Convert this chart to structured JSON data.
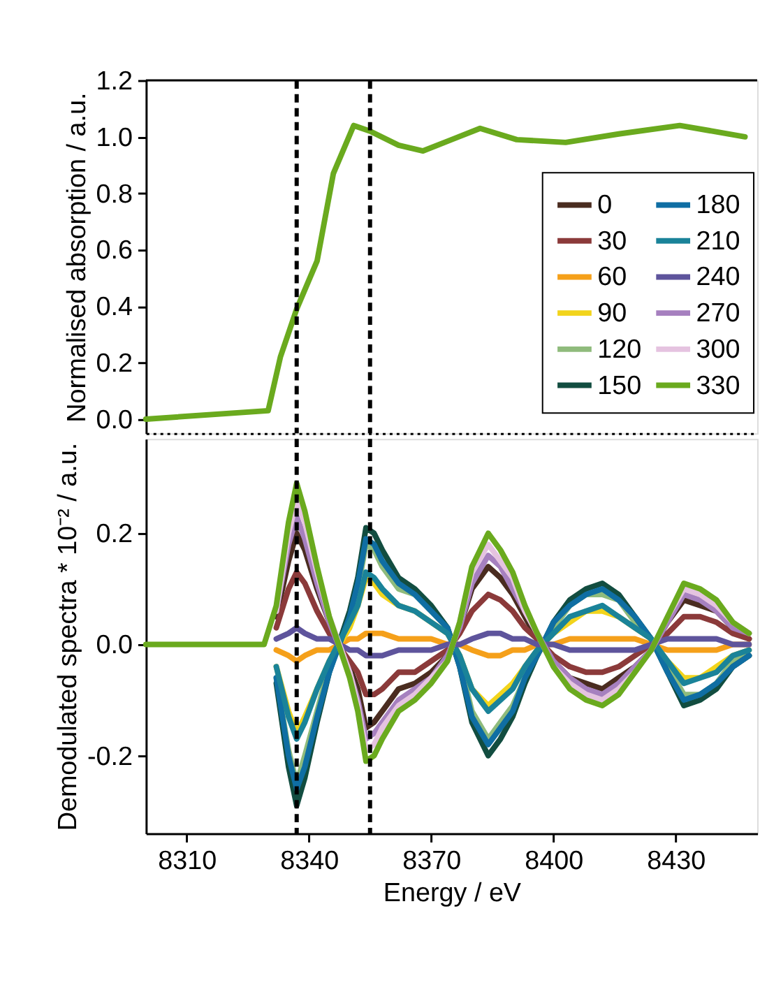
{
  "chart_data": [
    {
      "type": "line",
      "ylabel": "Normalised absorption / a.u.",
      "xlim": [
        8300,
        8450
      ],
      "ylim": [
        -0.05,
        1.2
      ],
      "yticks": [
        {
          "value": 0,
          "label": "0.0"
        },
        {
          "value": 0.2,
          "label": "0.2"
        },
        {
          "value": 0.4,
          "label": "0.4"
        },
        {
          "value": 0.6,
          "label": "0.6"
        },
        {
          "value": 0.8,
          "label": "0.8"
        },
        {
          "value": 1.0,
          "label": "1.0"
        },
        {
          "value": 1.2,
          "label": "1.2"
        }
      ],
      "tick_labels": "y",
      "line_style": "solid",
      "ref_lines": [
        {
          "axis": "x",
          "value": 8337,
          "line_style": "dashed"
        },
        {
          "axis": "x",
          "value": 8355,
          "line_style": "dashed"
        }
      ],
      "x": [
        8300,
        8330,
        8333,
        8337,
        8342,
        8346,
        8351,
        8355,
        8362,
        8368,
        8375,
        8382,
        8391,
        8403,
        8416,
        8431,
        8447
      ],
      "series": [
        {
          "color": "#6aaa1e",
          "values": [
            0,
            0.03,
            0.22,
            0.39,
            0.56,
            0.87,
            1.04,
            1.02,
            0.97,
            0.95,
            0.99,
            1.03,
            0.99,
            0.98,
            1.01,
            1.04,
            1.0
          ]
        }
      ]
    },
    {
      "type": "line",
      "xlabel": "Energy / eV",
      "ylabel": "Demodulated spectra * 10⁻² / a.u.",
      "xlim": [
        8300,
        8450
      ],
      "ylim": [
        -0.34,
        0.37
      ],
      "xticks": [
        8310,
        8340,
        8370,
        8400,
        8430
      ],
      "yticks": [
        {
          "value": -0.2,
          "label": "-0.2"
        },
        {
          "value": 0,
          "label": "0.0"
        },
        {
          "value": 0.2,
          "label": "0.2"
        }
      ],
      "line_style": "solid",
      "legend": "top right",
      "ref_lines": [
        {
          "axis": "x",
          "value": 8337,
          "line_style": "dashed"
        },
        {
          "axis": "x",
          "value": 8355,
          "line_style": "dashed"
        }
      ],
      "x": [
        8300,
        8305,
        8310,
        8315,
        8320,
        8325,
        8329,
        8332,
        8335,
        8337,
        8339,
        8342,
        8345,
        8350,
        8352,
        8354,
        8356,
        8358,
        8362,
        8366,
        8370,
        8374,
        8377,
        8380,
        8384,
        8387,
        8390,
        8393,
        8396,
        8400,
        8404,
        8408,
        8412,
        8416,
        8420,
        8424,
        8428,
        8432,
        8436,
        8440,
        8444,
        8448
      ],
      "series": [
        {
          "name": "0",
          "color": "#4a2c20",
          "values": [
            null,
            null,
            null,
            null,
            null,
            null,
            null,
            0.05,
            0.15,
            0.2,
            0.17,
            0.1,
            0.04,
            -0.04,
            -0.08,
            -0.15,
            -0.14,
            -0.12,
            -0.08,
            -0.07,
            -0.05,
            -0.02,
            0.03,
            0.1,
            0.14,
            0.12,
            0.09,
            0.05,
            0.01,
            -0.03,
            -0.06,
            -0.07,
            -0.08,
            -0.06,
            -0.04,
            -0.01,
            0.04,
            0.08,
            0.07,
            0.06,
            0.03,
            0.01
          ]
        },
        {
          "name": "30",
          "color": "#8b3a3a",
          "values": [
            null,
            null,
            null,
            null,
            null,
            null,
            null,
            0.03,
            0.1,
            0.13,
            0.11,
            0.06,
            0.02,
            -0.03,
            -0.05,
            -0.09,
            -0.09,
            -0.08,
            -0.05,
            -0.05,
            -0.03,
            -0.01,
            0.02,
            0.06,
            0.09,
            0.08,
            0.06,
            0.03,
            0.01,
            -0.02,
            -0.04,
            -0.05,
            -0.05,
            -0.04,
            -0.02,
            0,
            0.02,
            0.05,
            0.05,
            0.04,
            0.02,
            0.01
          ]
        },
        {
          "name": "60",
          "color": "#f5a01a",
          "values": [
            null,
            null,
            null,
            null,
            null,
            null,
            null,
            -0.01,
            -0.02,
            -0.03,
            -0.02,
            -0.01,
            -0.01,
            0.01,
            0.01,
            0.02,
            0.02,
            0.02,
            0.01,
            0.01,
            0.01,
            0,
            0,
            -0.01,
            -0.02,
            -0.02,
            -0.01,
            -0.01,
            0,
            0,
            0.01,
            0.01,
            0.01,
            0.01,
            0.01,
            0,
            -0.01,
            -0.01,
            -0.01,
            -0.01,
            0,
            0
          ]
        },
        {
          "name": "90",
          "color": "#f2d41c",
          "values": [
            null,
            null,
            null,
            null,
            null,
            null,
            null,
            -0.04,
            -0.12,
            -0.16,
            -0.13,
            -0.08,
            -0.03,
            0.03,
            0.07,
            0.12,
            0.11,
            0.09,
            0.07,
            0.06,
            0.04,
            0.02,
            -0.02,
            -0.08,
            -0.11,
            -0.09,
            -0.07,
            -0.04,
            -0.01,
            0.02,
            0.04,
            0.06,
            0.06,
            0.05,
            0.03,
            0.01,
            -0.03,
            -0.06,
            -0.06,
            -0.04,
            -0.02,
            -0.01
          ]
        },
        {
          "name": "120",
          "color": "#8fbb7c",
          "values": [
            null,
            null,
            null,
            null,
            null,
            null,
            null,
            -0.06,
            -0.19,
            -0.25,
            -0.2,
            -0.12,
            -0.04,
            0.05,
            0.1,
            0.18,
            0.17,
            0.14,
            0.1,
            0.09,
            0.06,
            0.03,
            -0.03,
            -0.12,
            -0.17,
            -0.14,
            -0.11,
            -0.06,
            -0.02,
            0.03,
            0.07,
            0.09,
            0.09,
            0.08,
            0.04,
            0.01,
            -0.04,
            -0.09,
            -0.09,
            -0.07,
            -0.03,
            -0.02
          ]
        },
        {
          "name": "150",
          "color": "#124d40",
          "values": [
            null,
            null,
            null,
            null,
            null,
            null,
            null,
            -0.07,
            -0.22,
            -0.29,
            -0.24,
            -0.14,
            -0.05,
            0.06,
            0.12,
            0.21,
            0.2,
            0.17,
            0.12,
            0.1,
            0.07,
            0.03,
            -0.04,
            -0.14,
            -0.2,
            -0.17,
            -0.13,
            -0.07,
            -0.02,
            0.04,
            0.08,
            0.1,
            0.11,
            0.09,
            0.05,
            0.01,
            -0.05,
            -0.11,
            -0.1,
            -0.08,
            -0.04,
            -0.02
          ]
        },
        {
          "name": "180",
          "color": "#0f6ea3",
          "values": [
            null,
            null,
            null,
            null,
            null,
            null,
            null,
            -0.06,
            -0.2,
            -0.26,
            -0.22,
            -0.13,
            -0.05,
            0.05,
            0.11,
            0.19,
            0.18,
            0.15,
            0.11,
            0.09,
            0.06,
            0.03,
            -0.04,
            -0.13,
            -0.18,
            -0.15,
            -0.12,
            -0.06,
            -0.02,
            0.04,
            0.07,
            0.09,
            0.1,
            0.08,
            0.05,
            0.01,
            -0.05,
            -0.1,
            -0.09,
            -0.07,
            -0.04,
            -0.02
          ]
        },
        {
          "name": "210",
          "color": "#1a8399",
          "values": [
            null,
            null,
            null,
            null,
            null,
            null,
            null,
            -0.04,
            -0.13,
            -0.17,
            -0.14,
            -0.08,
            -0.03,
            0.04,
            0.07,
            0.13,
            0.12,
            0.1,
            0.07,
            0.06,
            0.04,
            0.02,
            -0.02,
            -0.08,
            -0.12,
            -0.1,
            -0.08,
            -0.04,
            -0.01,
            0.02,
            0.05,
            0.06,
            0.07,
            0.05,
            0.03,
            0.01,
            -0.03,
            -0.07,
            -0.06,
            -0.05,
            -0.02,
            -0.01
          ]
        },
        {
          "name": "240",
          "color": "#5e549c",
          "values": [
            null,
            null,
            null,
            null,
            null,
            null,
            null,
            0.01,
            0.02,
            0.03,
            0.02,
            0.01,
            0.01,
            -0.01,
            -0.01,
            -0.02,
            -0.02,
            -0.02,
            -0.01,
            -0.01,
            -0.01,
            0,
            0,
            0.01,
            0.02,
            0.02,
            0.01,
            0.01,
            0,
            0,
            -0.01,
            -0.01,
            -0.01,
            -0.01,
            -0.01,
            0,
            0.01,
            0.01,
            0.01,
            0.01,
            0,
            0
          ]
        },
        {
          "name": "270",
          "color": "#a680bf",
          "values": [
            null,
            null,
            null,
            null,
            null,
            null,
            null,
            0.06,
            0.18,
            0.23,
            0.19,
            0.11,
            0.04,
            -0.05,
            -0.1,
            -0.17,
            -0.16,
            -0.14,
            -0.1,
            -0.08,
            -0.06,
            -0.02,
            0.03,
            0.11,
            0.16,
            0.14,
            0.1,
            0.06,
            0.02,
            -0.03,
            -0.06,
            -0.08,
            -0.09,
            -0.07,
            -0.04,
            -0.01,
            0.04,
            0.09,
            0.08,
            0.06,
            0.03,
            0.02
          ]
        },
        {
          "name": "300",
          "color": "#e5c3e0",
          "values": [
            null,
            null,
            null,
            null,
            null,
            null,
            null,
            0.06,
            0.2,
            0.26,
            0.22,
            0.13,
            0.05,
            -0.05,
            -0.11,
            -0.19,
            -0.18,
            -0.15,
            -0.11,
            -0.09,
            -0.06,
            -0.03,
            0.04,
            0.13,
            0.18,
            0.15,
            0.12,
            0.06,
            0.02,
            -0.04,
            -0.07,
            -0.09,
            -0.1,
            -0.08,
            -0.05,
            -0.01,
            0.05,
            0.1,
            0.09,
            0.07,
            0.04,
            0.02
          ]
        },
        {
          "name": "330",
          "color": "#6aaa1e",
          "values": [
            0,
            0,
            0,
            0,
            0,
            0,
            0,
            0.07,
            0.22,
            0.29,
            0.24,
            0.14,
            0.05,
            -0.06,
            -0.12,
            -0.21,
            -0.2,
            -0.17,
            -0.12,
            -0.1,
            -0.07,
            -0.03,
            0.04,
            0.14,
            0.2,
            0.17,
            0.13,
            0.07,
            0.02,
            -0.04,
            -0.08,
            -0.1,
            -0.11,
            -0.09,
            -0.05,
            -0.01,
            0.05,
            0.11,
            0.1,
            0.08,
            0.04,
            0.02
          ]
        }
      ]
    }
  ]
}
